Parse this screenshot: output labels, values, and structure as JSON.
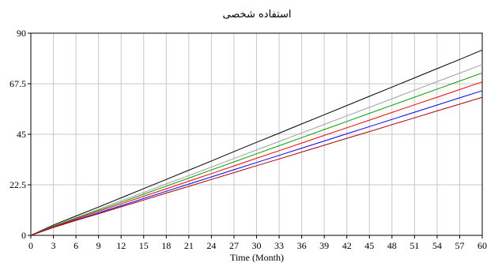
{
  "chart_data": {
    "type": "line",
    "title": "استفاده شخصی",
    "xlabel": "Time (Month)",
    "ylabel": "",
    "xlim": [
      0,
      60
    ],
    "ylim": [
      0,
      90
    ],
    "grid": true,
    "x_ticks": [
      0,
      3,
      6,
      9,
      12,
      15,
      18,
      21,
      24,
      27,
      30,
      33,
      36,
      39,
      42,
      45,
      48,
      51,
      54,
      57,
      60
    ],
    "y_ticks": [
      0,
      22.5,
      45,
      67.5,
      90
    ],
    "y_tick_labels": [
      "0",
      "22.5",
      "45",
      "67.5",
      "90"
    ],
    "x": [
      0,
      3,
      6,
      9,
      12,
      15,
      18,
      21,
      24,
      27,
      30,
      33,
      36,
      39,
      42,
      45,
      48,
      51,
      54,
      57,
      60
    ],
    "series": [
      {
        "color": "#000000",
        "values": [
          0,
          4.6,
          8.6,
          12.6,
          16.7,
          20.8,
          24.9,
          29.0,
          33.1,
          37.3,
          41.4,
          45.5,
          49.6,
          53.7,
          57.8,
          61.9,
          66.0,
          70.1,
          74.2,
          78.3,
          82.5
        ]
      },
      {
        "color": "#a0a0a0",
        "values": [
          0,
          4.2,
          7.9,
          11.6,
          15.4,
          19.1,
          22.9,
          26.6,
          30.4,
          34.2,
          38.0,
          41.8,
          45.6,
          49.4,
          53.2,
          57.0,
          60.8,
          64.6,
          68.4,
          72.2,
          76.0
        ]
      },
      {
        "color": "#00a000",
        "values": [
          0,
          4.0,
          7.6,
          11.1,
          14.7,
          18.3,
          21.9,
          25.5,
          29.1,
          32.7,
          36.3,
          39.9,
          43.5,
          47.1,
          50.7,
          54.3,
          57.9,
          61.5,
          65.1,
          68.7,
          72.3
        ]
      },
      {
        "color": "#ff0000",
        "values": [
          0,
          3.8,
          7.2,
          10.6,
          14.0,
          17.4,
          20.7,
          24.1,
          27.5,
          30.9,
          34.3,
          37.7,
          41.1,
          44.5,
          47.9,
          51.3,
          54.7,
          58.1,
          61.5,
          64.9,
          68.3
        ]
      },
      {
        "color": "#0000ff",
        "values": [
          0,
          3.6,
          6.8,
          10.0,
          13.2,
          16.4,
          19.6,
          22.8,
          26.0,
          29.2,
          32.4,
          35.6,
          38.8,
          42.0,
          45.2,
          48.4,
          51.6,
          54.8,
          58.0,
          61.2,
          64.4
        ]
      },
      {
        "color": "#b00000",
        "values": [
          0,
          3.5,
          6.6,
          9.6,
          12.7,
          15.7,
          18.8,
          21.8,
          24.9,
          27.9,
          31.0,
          34.0,
          37.1,
          40.1,
          43.2,
          46.2,
          49.3,
          52.3,
          55.4,
          58.4,
          61.5
        ]
      }
    ]
  }
}
